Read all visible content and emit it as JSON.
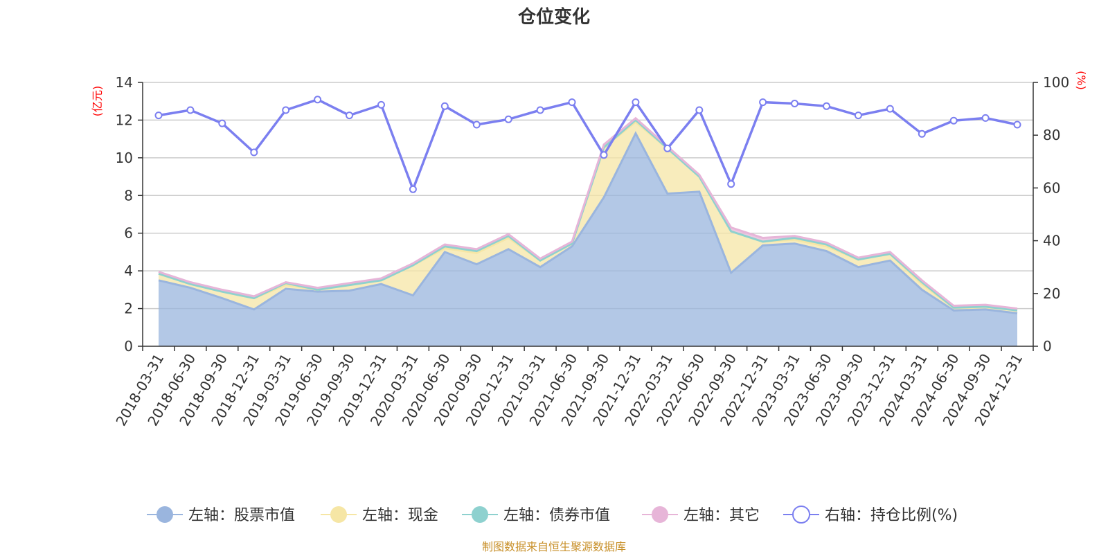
{
  "chart_data": {
    "type": "area",
    "title": "仓位变化",
    "left_axis": {
      "unit_label": "(亿元)",
      "range": [
        0,
        14
      ],
      "ticks": [
        "0",
        "2",
        "4",
        "6",
        "8",
        "10",
        "12",
        "14"
      ]
    },
    "right_axis": {
      "unit_label": "(%)",
      "range": [
        0,
        100
      ],
      "ticks": [
        "0",
        "20",
        "40",
        "60",
        "80",
        "100"
      ]
    },
    "x": [
      "2018-03-31",
      "2018-06-30",
      "2018-09-30",
      "2018-12-31",
      "2019-03-31",
      "2019-06-30",
      "2019-09-30",
      "2019-12-31",
      "2020-03-31",
      "2020-06-30",
      "2020-09-30",
      "2020-12-31",
      "2021-03-31",
      "2021-06-30",
      "2021-09-30",
      "2021-12-31",
      "2022-03-31",
      "2022-06-30",
      "2022-09-30",
      "2022-12-31",
      "2023-03-31",
      "2023-06-30",
      "2023-09-30",
      "2023-12-31",
      "2024-03-31",
      "2024-06-30",
      "2024-09-30",
      "2024-12-31"
    ],
    "series": [
      {
        "name": "左轴：股票市值",
        "axis": "left",
        "kind": "area",
        "color": "#9ab5de",
        "values": [
          3.5,
          3.1,
          2.55,
          1.95,
          3.05,
          2.9,
          2.95,
          3.3,
          2.7,
          5.0,
          4.35,
          5.15,
          4.2,
          5.3,
          7.9,
          11.3,
          8.1,
          8.2,
          3.9,
          5.35,
          5.45,
          5.05,
          4.2,
          4.55,
          3.0,
          1.9,
          1.95,
          1.75
        ]
      },
      {
        "name": "左轴：现金",
        "axis": "left",
        "kind": "area",
        "color": "#f6e6a5",
        "values": [
          0.35,
          0.2,
          0.35,
          0.6,
          0.2,
          0.1,
          0.3,
          0.2,
          1.6,
          0.2,
          0.6,
          0.6,
          0.35,
          0.15,
          2.65,
          0.6,
          2.4,
          0.8,
          2.2,
          0.2,
          0.2,
          0.25,
          0.4,
          0.35,
          0.3,
          0.15,
          0.15,
          0.15
        ]
      },
      {
        "name": "左轴：债券市值",
        "axis": "left",
        "kind": "area",
        "color": "#8ed1cf",
        "values": [
          0.0,
          0.0,
          0.0,
          0.0,
          0.1,
          0.0,
          0.0,
          0.0,
          0.0,
          0.1,
          0.1,
          0.1,
          0.0,
          0.0,
          0.0,
          0.1,
          0.0,
          0.0,
          0.0,
          0.0,
          0.1,
          0.1,
          0.0,
          0.0,
          0.1,
          0.0,
          0.0,
          0.0
        ]
      },
      {
        "name": "左轴：其它",
        "axis": "left",
        "kind": "area",
        "color": "#e7b5d8",
        "values": [
          0.1,
          0.1,
          0.1,
          0.1,
          0.05,
          0.1,
          0.1,
          0.1,
          0.1,
          0.1,
          0.1,
          0.1,
          0.1,
          0.1,
          0.15,
          0.1,
          0.1,
          0.1,
          0.2,
          0.2,
          0.1,
          0.1,
          0.1,
          0.1,
          0.1,
          0.1,
          0.1,
          0.1
        ]
      },
      {
        "name": "右轴：持仓比例(%)",
        "axis": "right",
        "kind": "line",
        "color": "#7b7ff0",
        "values": [
          87.5,
          89.5,
          84.5,
          73.5,
          89.5,
          93.5,
          87.5,
          91.5,
          59.5,
          91.0,
          84.0,
          86.0,
          89.5,
          92.5,
          72.5,
          92.5,
          75.0,
          89.5,
          61.5,
          92.5,
          92.0,
          91.0,
          87.5,
          90.0,
          80.5,
          85.5,
          86.5,
          84.0
        ]
      }
    ],
    "legend_position": "bottom",
    "grid": true
  },
  "footer": {
    "source": "制图数据来自恒生聚源数据库"
  }
}
